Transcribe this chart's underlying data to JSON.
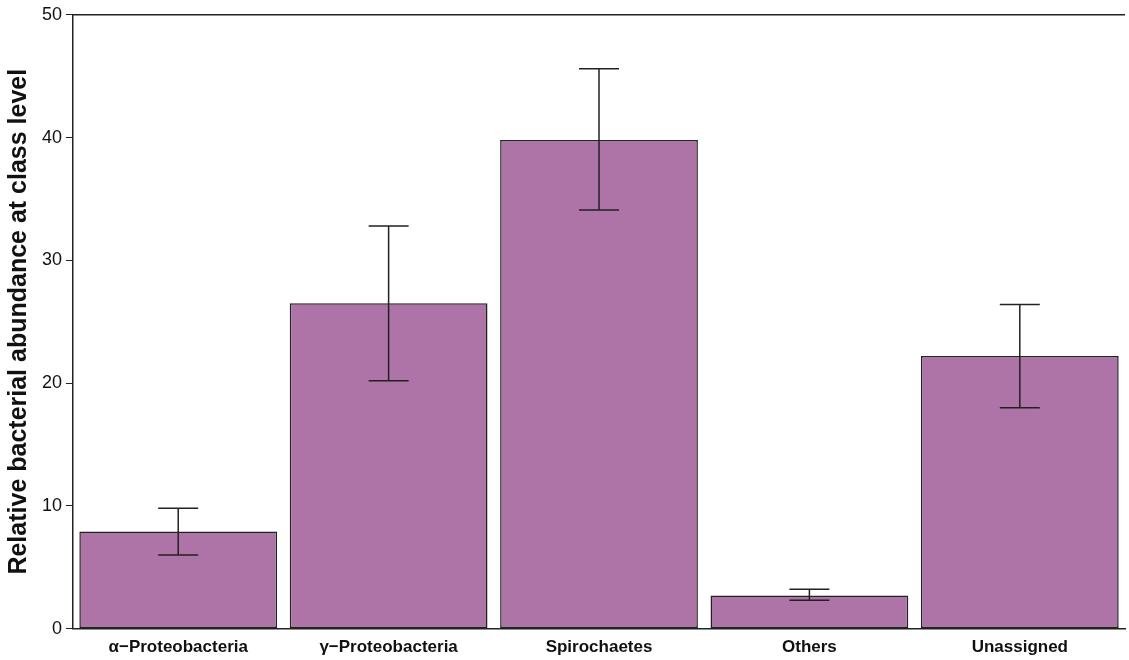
{
  "chart_data": {
    "type": "bar",
    "ylabel": "Relative bacterial abundance at class level",
    "categories": [
      "α−Proteobacteria",
      "γ−Proteobacteria",
      "Spirochaetes",
      "Others",
      "Unassigned"
    ],
    "values": [
      7.9,
      26.5,
      39.8,
      2.7,
      22.2
    ],
    "errors": [
      [
        6.0,
        9.8
      ],
      [
        20.2,
        32.8
      ],
      [
        34.1,
        45.6
      ],
      [
        2.3,
        3.2
      ],
      [
        18.0,
        26.4
      ]
    ],
    "color": "#ae73a7",
    "ylim": [
      0,
      50
    ],
    "yticks": [
      0,
      10,
      20,
      30,
      40,
      50
    ],
    "grid": false,
    "legend": false
  }
}
